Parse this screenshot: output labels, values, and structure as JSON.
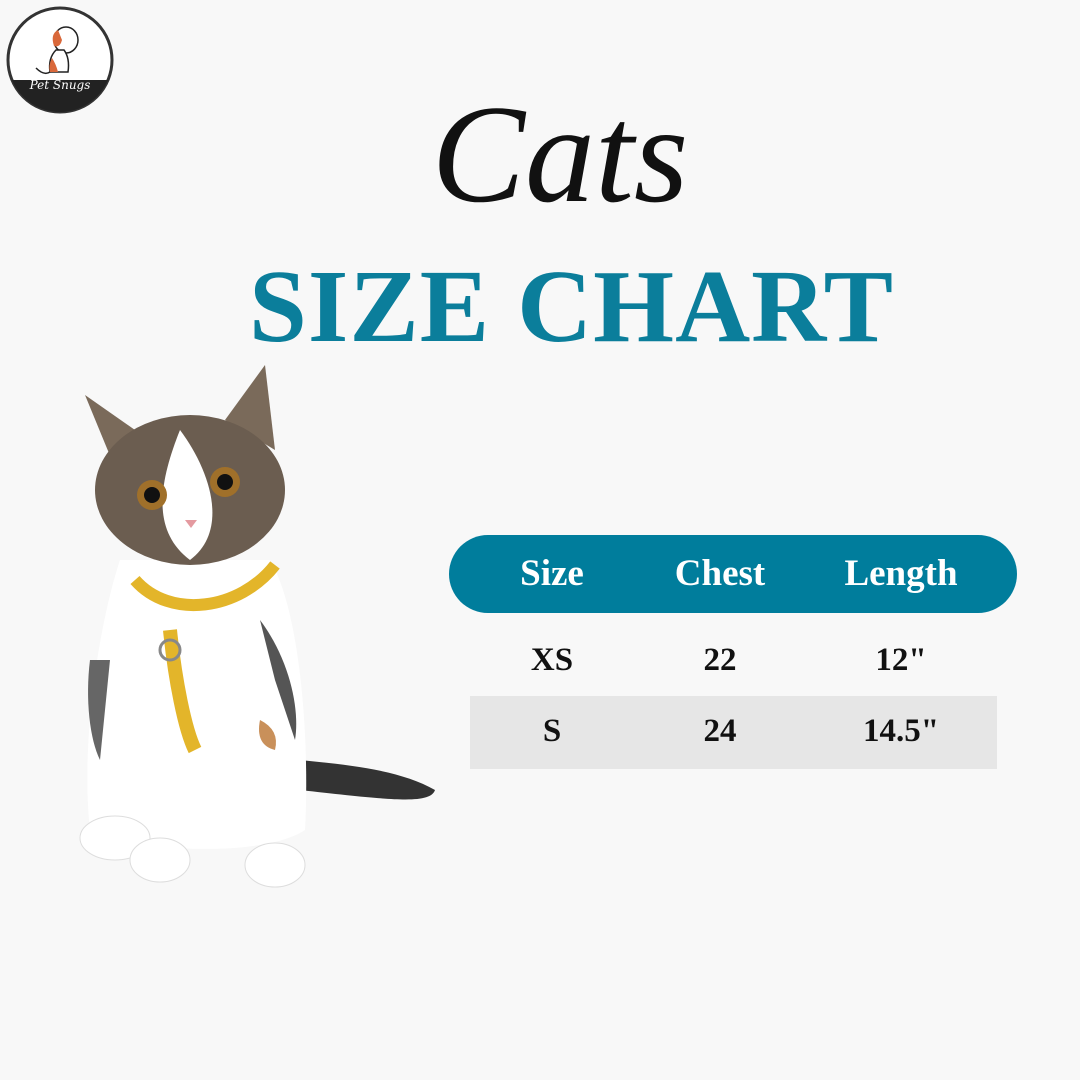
{
  "brand": {
    "name": "Pet Snugs"
  },
  "title": {
    "script": "Cats",
    "main": "SIZE CHART"
  },
  "colors": {
    "accent": "#007d9c",
    "title": "#0b7e9b",
    "row_alt": "#e6e6e6",
    "background": "#f8f8f8"
  },
  "table": {
    "headers": [
      "Size",
      "Chest",
      "Length"
    ],
    "rows": [
      [
        "XS",
        "22",
        "12\""
      ],
      [
        "S",
        "24",
        "14.5\""
      ]
    ]
  }
}
